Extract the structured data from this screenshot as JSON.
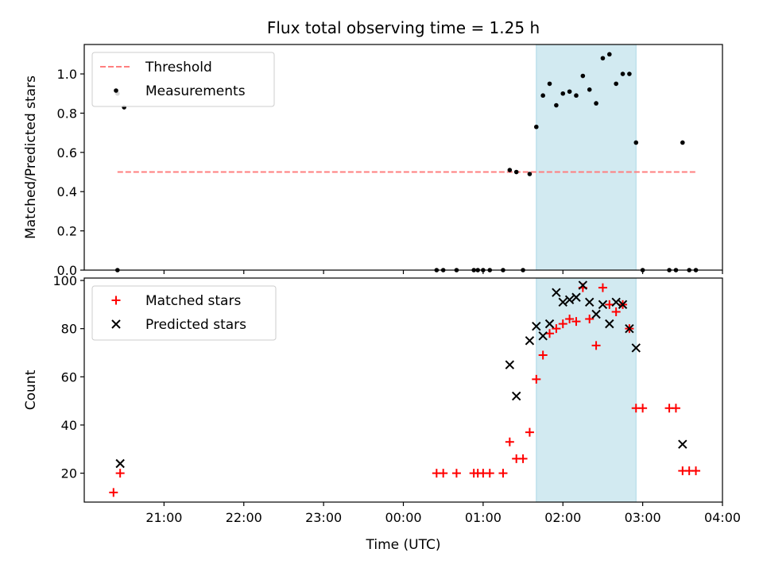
{
  "chart_data": [
    {
      "type": "scatter",
      "title": "Flux total observing time = 1.25 h",
      "xlabel": "",
      "ylabel": "Matched/Predicted stars",
      "ylim": [
        0,
        1.15
      ],
      "yticks": [
        0.0,
        0.2,
        0.4,
        0.6,
        0.8,
        1.0
      ],
      "ytick_labels": [
        "0.0",
        "0.2",
        "0.4",
        "0.6",
        "0.8",
        "1.0"
      ],
      "shaded_span": [
        "01:40",
        "02:55"
      ],
      "shaded_color": "#add8e6",
      "legend": {
        "position": "top-left",
        "entries": [
          "Threshold",
          "Measurements"
        ]
      },
      "series": [
        {
          "name": "Threshold",
          "kind": "line",
          "style": "dashed",
          "color": "#ff7f7f",
          "x": [
            "20:25",
            "03:40"
          ],
          "y": [
            0.5,
            0.5
          ]
        },
        {
          "name": "Measurements",
          "kind": "scatter",
          "color": "#000000",
          "x": [
            "20:25",
            "20:25",
            "20:30",
            "00:25",
            "00:30",
            "00:40",
            "00:53",
            "00:56",
            "01:00",
            "01:05",
            "01:15",
            "01:20",
            "01:25",
            "01:30",
            "01:35",
            "01:40",
            "01:45",
            "01:50",
            "01:55",
            "02:00",
            "02:05",
            "02:10",
            "02:15",
            "02:20",
            "02:25",
            "02:30",
            "02:35",
            "02:40",
            "02:45",
            "02:50",
            "02:55",
            "03:00",
            "03:20",
            "03:25",
            "03:30",
            "03:35",
            "03:40"
          ],
          "y": [
            0.0,
            0.9,
            0.83,
            0.0,
            0.0,
            0.0,
            0.0,
            0.0,
            0.0,
            0.0,
            0.0,
            0.51,
            0.5,
            0.0,
            0.49,
            0.73,
            0.89,
            0.95,
            0.84,
            0.9,
            0.91,
            0.89,
            0.99,
            0.92,
            0.85,
            1.08,
            1.1,
            0.95,
            1.0,
            1.0,
            0.65,
            0.0,
            0.0,
            0.0,
            0.65,
            0.0,
            0.0
          ]
        }
      ]
    },
    {
      "type": "scatter",
      "title": "",
      "xlabel": "Time (UTC)",
      "ylabel": "Count",
      "ylim": [
        8,
        101
      ],
      "yticks": [
        20,
        40,
        60,
        80,
        100
      ],
      "ytick_labels": [
        "20",
        "40",
        "60",
        "80",
        "100"
      ],
      "xlim": [
        "20:00",
        "04:00"
      ],
      "xtick_labels": [
        "21:00",
        "22:00",
        "23:00",
        "00:00",
        "01:00",
        "02:00",
        "03:00",
        "04:00"
      ],
      "shaded_span": [
        "01:40",
        "02:55"
      ],
      "shaded_color": "#add8e6",
      "legend": {
        "position": "top-left",
        "entries": [
          "Matched stars",
          "Predicted stars"
        ]
      },
      "series": [
        {
          "name": "Matched stars",
          "marker": "+",
          "color": "#ff0000",
          "x": [
            "20:22",
            "20:27",
            "00:25",
            "00:30",
            "00:40",
            "00:53",
            "00:56",
            "01:00",
            "01:05",
            "01:15",
            "01:20",
            "01:25",
            "01:30",
            "01:35",
            "01:40",
            "01:45",
            "01:50",
            "01:55",
            "02:00",
            "02:05",
            "02:10",
            "02:15",
            "02:20",
            "02:25",
            "02:30",
            "02:35",
            "02:40",
            "02:45",
            "02:50",
            "02:55",
            "03:00",
            "03:20",
            "03:25",
            "03:30",
            "03:35",
            "03:40"
          ],
          "y": [
            12,
            20,
            20,
            20,
            20,
            20,
            20,
            20,
            20,
            20,
            33,
            26,
            26,
            37,
            59,
            69,
            78,
            80,
            82,
            84,
            83,
            97,
            84,
            73,
            97,
            90,
            87,
            90,
            80,
            47,
            47,
            47,
            47,
            21,
            21,
            21
          ]
        },
        {
          "name": "Predicted stars",
          "marker": "x",
          "color": "#000000",
          "x": [
            "20:27",
            "01:20",
            "01:25",
            "01:35",
            "01:40",
            "01:45",
            "01:50",
            "01:55",
            "02:00",
            "02:05",
            "02:10",
            "02:15",
            "02:20",
            "02:25",
            "02:30",
            "02:35",
            "02:40",
            "02:45",
            "02:50",
            "02:55",
            "03:30"
          ],
          "y": [
            24,
            65,
            52,
            75,
            81,
            77,
            82,
            95,
            91,
            92,
            93,
            98,
            91,
            86,
            90,
            82,
            91,
            90,
            80,
            72,
            32
          ]
        }
      ]
    }
  ]
}
